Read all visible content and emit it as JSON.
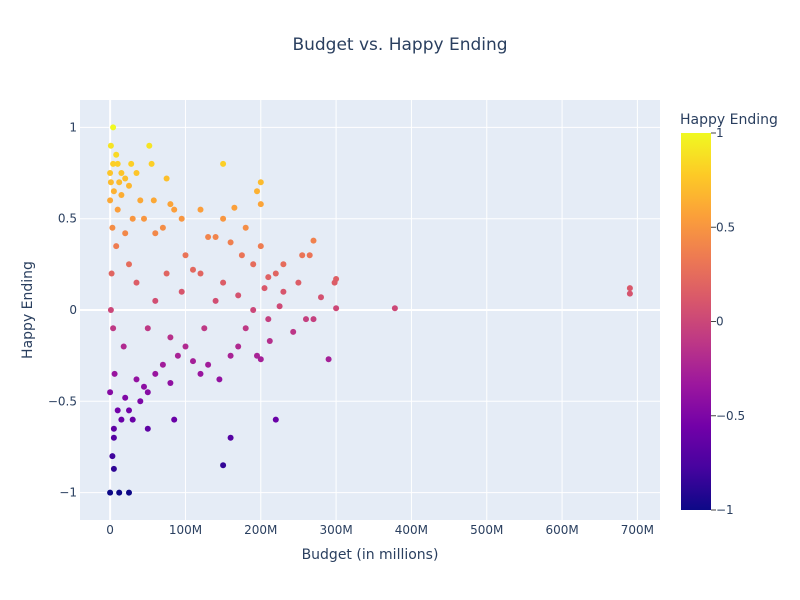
{
  "chart_data": {
    "type": "scatter",
    "title": "Budget vs. Happy Ending",
    "xlabel": "Budget (in millions)",
    "ylabel": "Happy Ending",
    "xlim": [
      -40000000,
      730000000
    ],
    "ylim": [
      -1.15,
      1.15
    ],
    "x_ticks": [
      0,
      100000000,
      200000000,
      300000000,
      400000000,
      500000000,
      600000000,
      700000000
    ],
    "x_tick_labels": [
      "0",
      "100M",
      "200M",
      "300M",
      "400M",
      "500M",
      "600M",
      "700M"
    ],
    "y_ticks": [
      -1,
      -0.5,
      0,
      0.5,
      1
    ],
    "y_tick_labels": [
      "−1",
      "−0.5",
      "0",
      "0.5",
      "1"
    ],
    "grid": true,
    "colorbar": {
      "title": "Happy Ending",
      "range": [
        -1,
        1
      ],
      "ticks": [
        -1,
        -0.5,
        0,
        0.5,
        1
      ],
      "tick_labels": [
        "−1",
        "−0.5",
        "0",
        "0.5",
        "1"
      ],
      "colorscale": [
        "#0d0887",
        "#46039f",
        "#7201a8",
        "#9c179e",
        "#bd3786",
        "#d8576b",
        "#ed7953",
        "#fb9f3a",
        "#fdca26",
        "#f0f921"
      ]
    },
    "points": [
      [
        4000000,
        1.0
      ],
      [
        1000000,
        0.9
      ],
      [
        52000000,
        0.9
      ],
      [
        8000000,
        0.85
      ],
      [
        4000000,
        0.8
      ],
      [
        10000000,
        0.8
      ],
      [
        28000000,
        0.8
      ],
      [
        55000000,
        0.8
      ],
      [
        150000000,
        0.8
      ],
      [
        0,
        0.75
      ],
      [
        15000000,
        0.75
      ],
      [
        35000000,
        0.75
      ],
      [
        20000000,
        0.72
      ],
      [
        75000000,
        0.72
      ],
      [
        200000000,
        0.7
      ],
      [
        1000000,
        0.7
      ],
      [
        12000000,
        0.7
      ],
      [
        25000000,
        0.68
      ],
      [
        195000000,
        0.65
      ],
      [
        5000000,
        0.65
      ],
      [
        15000000,
        0.63
      ],
      [
        40000000,
        0.6
      ],
      [
        58000000,
        0.6
      ],
      [
        80000000,
        0.58
      ],
      [
        200000000,
        0.58
      ],
      [
        85000000,
        0.55
      ],
      [
        120000000,
        0.55
      ],
      [
        165000000,
        0.56
      ],
      [
        10000000,
        0.55
      ],
      [
        30000000,
        0.5
      ],
      [
        45000000,
        0.5
      ],
      [
        95000000,
        0.5
      ],
      [
        150000000,
        0.5
      ],
      [
        180000000,
        0.45
      ],
      [
        70000000,
        0.45
      ],
      [
        130000000,
        0.4
      ],
      [
        140000000,
        0.4
      ],
      [
        160000000,
        0.37
      ],
      [
        270000000,
        0.38
      ],
      [
        200000000,
        0.35
      ],
      [
        255000000,
        0.3
      ],
      [
        230000000,
        0.25
      ],
      [
        265000000,
        0.3
      ],
      [
        300000000,
        0.17
      ],
      [
        298000000,
        0.15
      ],
      [
        220000000,
        0.2
      ],
      [
        205000000,
        0.12
      ],
      [
        250000000,
        0.15
      ],
      [
        280000000,
        0.07
      ],
      [
        260000000,
        -0.05
      ],
      [
        300000000,
        0.01
      ],
      [
        378000000,
        0.01
      ],
      [
        690000000,
        0.12
      ],
      [
        690000000,
        0.09
      ],
      [
        270000000,
        -0.05
      ],
      [
        243000000,
        -0.12
      ],
      [
        225000000,
        0.02
      ],
      [
        210000000,
        -0.05
      ],
      [
        180000000,
        -0.1
      ],
      [
        190000000,
        0.0
      ],
      [
        170000000,
        -0.2
      ],
      [
        160000000,
        -0.25
      ],
      [
        195000000,
        -0.25
      ],
      [
        200000000,
        -0.27
      ],
      [
        290000000,
        -0.27
      ],
      [
        212000000,
        -0.17
      ],
      [
        130000000,
        -0.3
      ],
      [
        120000000,
        -0.35
      ],
      [
        145000000,
        -0.38
      ],
      [
        110000000,
        -0.28
      ],
      [
        100000000,
        -0.2
      ],
      [
        80000000,
        -0.4
      ],
      [
        60000000,
        -0.35
      ],
      [
        50000000,
        -0.45
      ],
      [
        40000000,
        -0.5
      ],
      [
        25000000,
        -0.55
      ],
      [
        15000000,
        -0.6
      ],
      [
        5000000,
        -0.65
      ],
      [
        85000000,
        -0.6
      ],
      [
        220000000,
        -0.6
      ],
      [
        160000000,
        -0.7
      ],
      [
        5000000,
        -0.7
      ],
      [
        50000000,
        -0.65
      ],
      [
        5000000,
        -0.87
      ],
      [
        150000000,
        -0.85
      ],
      [
        0,
        -1.0
      ],
      [
        12000000,
        -1.0
      ],
      [
        25000000,
        -1.0
      ],
      [
        3000000,
        -0.8
      ],
      [
        30000000,
        -0.6
      ],
      [
        10000000,
        -0.55
      ],
      [
        20000000,
        -0.48
      ],
      [
        45000000,
        -0.42
      ],
      [
        35000000,
        -0.38
      ],
      [
        70000000,
        -0.3
      ],
      [
        90000000,
        -0.25
      ],
      [
        60000000,
        0.42
      ],
      [
        20000000,
        0.42
      ],
      [
        100000000,
        0.3
      ],
      [
        110000000,
        0.22
      ],
      [
        120000000,
        0.2
      ],
      [
        150000000,
        0.15
      ],
      [
        170000000,
        0.08
      ],
      [
        140000000,
        0.05
      ],
      [
        95000000,
        0.1
      ],
      [
        75000000,
        0.2
      ],
      [
        60000000,
        0.05
      ],
      [
        50000000,
        -0.1
      ],
      [
        80000000,
        -0.15
      ],
      [
        35000000,
        0.15
      ],
      [
        25000000,
        0.25
      ],
      [
        18000000,
        -0.2
      ],
      [
        8000000,
        0.35
      ],
      [
        0,
        0.6
      ],
      [
        0,
        -0.45
      ],
      [
        3000000,
        0.45
      ],
      [
        6000000,
        -0.35
      ],
      [
        2000000,
        0.2
      ],
      [
        4000000,
        -0.1
      ],
      [
        1000000,
        0.0
      ],
      [
        190000000,
        0.25
      ],
      [
        175000000,
        0.3
      ],
      [
        230000000,
        0.1
      ],
      [
        210000000,
        0.18
      ],
      [
        125000000,
        -0.1
      ]
    ]
  }
}
